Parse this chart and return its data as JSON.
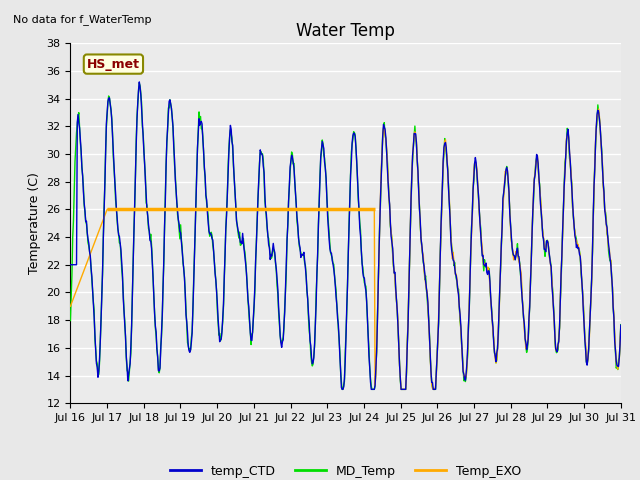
{
  "title": "Water Temp",
  "suptitle_left": "No data for f_WaterTemp",
  "ylabel": "Temperature (C)",
  "ylim": [
    12,
    38
  ],
  "yticks": [
    12,
    14,
    16,
    18,
    20,
    22,
    24,
    26,
    28,
    30,
    32,
    34,
    36,
    38
  ],
  "xlim_start": 0,
  "xlim_end": 15,
  "xtick_labels": [
    "Jul 16",
    "Jul 17",
    "Jul 18",
    "Jul 19",
    "Jul 20",
    "Jul 21",
    "Jul 22",
    "Jul 23",
    "Jul 24",
    "Jul 25",
    "Jul 26",
    "Jul 27",
    "Jul 28",
    "Jul 29",
    "Jul 30",
    "Jul 31"
  ],
  "horizontal_line_y": 26.0,
  "horizontal_line_x_start": 1.0,
  "horizontal_line_x_end": 8.3,
  "hs_met_label": "HS_met",
  "color_CTD": "#0000cc",
  "color_MD": "#00dd00",
  "color_EXO": "#ffaa00",
  "legend_labels": [
    "temp_CTD",
    "MD_Temp",
    "Temp_EXO"
  ],
  "bg_color": "#e8e8e8",
  "plot_bg_color": "#ebebeb",
  "grid_color": "#ffffff",
  "lw": 1.0,
  "title_fontsize": 12,
  "label_fontsize": 9,
  "tick_fontsize": 8
}
